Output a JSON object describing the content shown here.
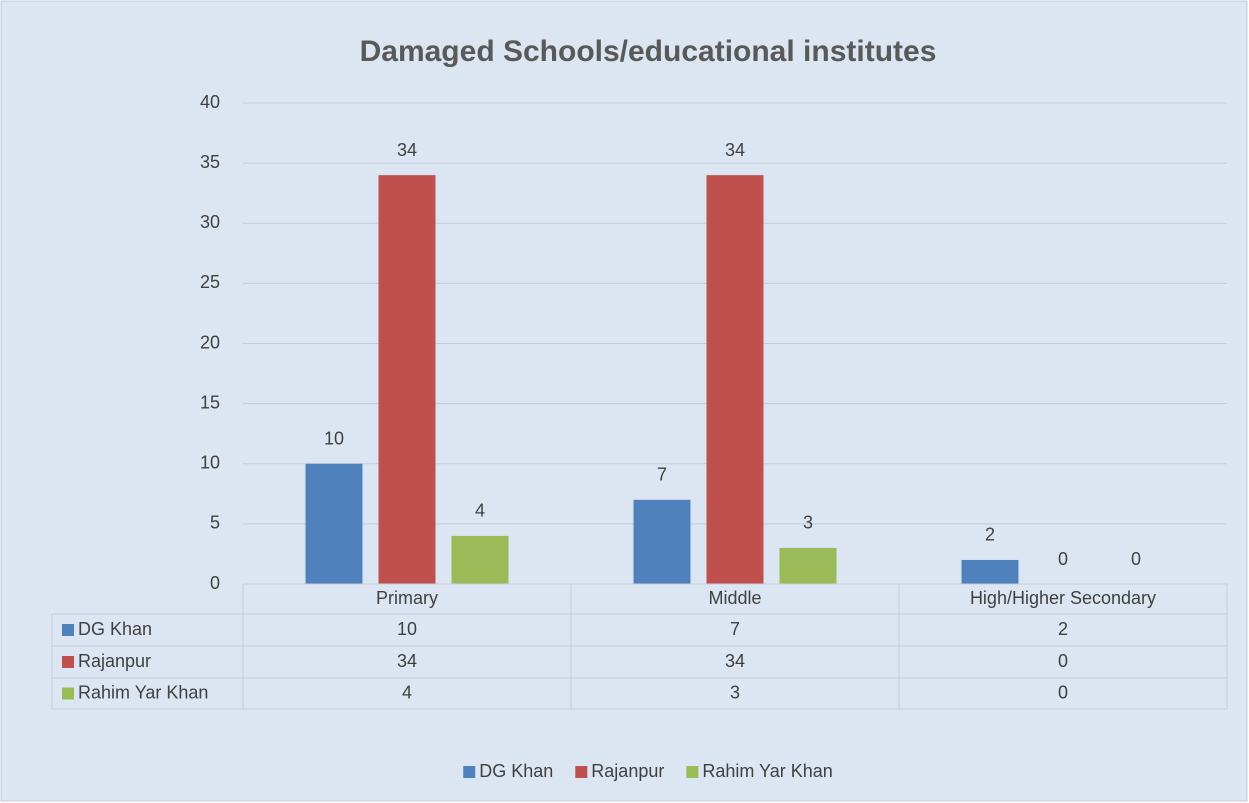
{
  "chart_data": {
    "type": "bar",
    "title": "Damaged Schools/educational institutes",
    "categories": [
      "Primary",
      "Middle",
      "High/Higher Secondary"
    ],
    "series": [
      {
        "name": "DG Khan",
        "color": "#4f81bd",
        "values": [
          10,
          7,
          2
        ]
      },
      {
        "name": "Rajanpur",
        "color": "#c0504d",
        "values": [
          34,
          34,
          0
        ]
      },
      {
        "name": "Rahim Yar Khan",
        "color": "#9bbb59",
        "values": [
          4,
          3,
          0
        ]
      }
    ],
    "ylim": [
      0,
      40
    ],
    "yticks": [
      0,
      5,
      10,
      15,
      20,
      25,
      30,
      35,
      40
    ],
    "grid": true,
    "legend": "bottom",
    "data_table": true
  }
}
